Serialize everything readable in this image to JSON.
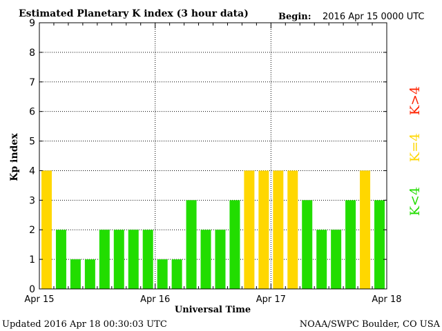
{
  "chart_data": {
    "type": "bar",
    "title": "Estimated Planetary K index (3 hour data)",
    "begin_label": "Begin:",
    "begin_value": "2016 Apr 15 0000 UTC",
    "xlabel": "Universal Time",
    "ylabel": "Kp index",
    "ylim": [
      0,
      9
    ],
    "yticks": [
      "0",
      "1",
      "2",
      "3",
      "4",
      "5",
      "6",
      "7",
      "8",
      "9"
    ],
    "xticks": [
      "Apr 15",
      "Apr 16",
      "Apr 17",
      "Apr 18"
    ],
    "values": [
      4,
      2,
      1,
      1,
      2,
      2,
      2,
      2,
      1,
      1,
      3,
      2,
      2,
      3,
      4,
      4,
      4,
      4,
      3,
      2,
      2,
      3,
      4,
      3
    ],
    "grid": true,
    "legend": [
      {
        "label": "K<4",
        "color": "#22dd00"
      },
      {
        "label": "K=4",
        "color": "#ffd700"
      },
      {
        "label": "K>4",
        "color": "#ff2200"
      }
    ],
    "updated": "Updated 2016 Apr 18 00:30:03 UTC",
    "source": "NOAA/SWPC Boulder, CO USA"
  },
  "colors": {
    "below4": "#22dd00",
    "equal4": "#ffd700",
    "above4": "#ff2200"
  }
}
